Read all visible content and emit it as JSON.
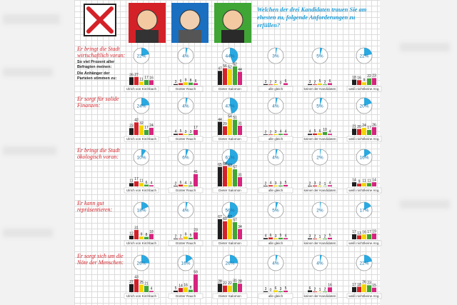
{
  "header": {
    "question": "Welchen der drei Kandidaten trauen Sie am ehesten zu, folgende Anforderungen zu erfüllen?"
  },
  "legend": {
    "respondents": "So viel Prozent aller Befragten meinen:",
    "supporters": "Die Anhänger der Parteien stimmen zu:"
  },
  "columns": [
    "Ulrich von Kirchbach",
    "Günter Rauch",
    "Dieter Salomon",
    "alle gleich",
    "keiner der Kandidaten",
    "weiß nicht/keine Ang."
  ],
  "party_colors": [
    "#1e1e1e",
    "#d42128",
    "#f3d400",
    "#3fa535",
    "#d6247f"
  ],
  "pie_color": "#29a9e1",
  "rows": [
    {
      "question": "Er bringt die Stadt wirtschaftlich voran:",
      "pies": [
        22,
        4,
        44,
        3,
        5,
        22
      ],
      "pie_labels": [
        "22%",
        "4%",
        "44%",
        "3%",
        "5%",
        "22%"
      ],
      "bars": [
        [
          26,
          27,
          11,
          17,
          16
        ],
        [
          3,
          6,
          9,
          8,
          6
        ],
        [
          47,
          56,
          52,
          62,
          44
        ],
        [
          3,
          2,
          3,
          0,
          6
        ],
        [
          3,
          2,
          5,
          2,
          6
        ],
        [
          18,
          16,
          9,
          22,
          23
        ]
      ]
    },
    {
      "question": "Er sorgt für solide Finanzen:",
      "pies": [
        24,
        4,
        47,
        4,
        5,
        20
      ],
      "pie_labels": [
        "24%",
        "4%",
        "47%",
        "4%",
        "5%",
        "20%"
      ],
      "bars": [
        [
          23,
          42,
          32,
          17,
          24
        ],
        [
          4,
          5,
          3,
          3,
          17
        ],
        [
          44,
          29,
          54,
          51,
          31
        ],
        [
          2,
          2,
          3,
          4,
          4
        ],
        [
          4,
          5,
          6,
          10,
          4
        ],
        [
          21,
          20,
          24,
          17,
          26
        ]
      ]
    },
    {
      "question": "Er bringt die Stadt ökologisch voran:",
      "pies": [
        10,
        6,
        61,
        4,
        2,
        16
      ],
      "pie_labels": [
        "10%",
        "6%",
        "61%",
        "4%",
        "2%",
        "16%"
      ],
      "bars": [
        [
          11,
          17,
          11,
          6,
          4
        ],
        [
          2,
          6,
          4,
          3,
          41
        ],
        [
          65,
          68,
          63,
          57,
          31
        ],
        [
          2,
          4,
          3,
          3,
          5
        ],
        [
          2,
          3,
          2,
          1,
          4
        ],
        [
          14,
          9,
          11,
          11,
          14
        ]
      ]
    },
    {
      "question": "Er kann gut repräsentieren:",
      "pies": [
        18,
        4,
        56,
        5,
        2,
        17
      ],
      "pie_labels": [
        "18%",
        "4%",
        "56%",
        "5%",
        "2%",
        "17%"
      ],
      "bars": [
        [
          12,
          31,
          9,
          8,
          18
        ],
        [
          2,
          2,
          9,
          5,
          23
        ],
        [
          67,
          60,
          67,
          57,
          34
        ],
        [
          4,
          6,
          3,
          5,
          4
        ],
        [
          3,
          2,
          1,
          2,
          5
        ],
        [
          17,
          13,
          16,
          17,
          19
        ]
      ]
    },
    {
      "question": "Er sorgt sich um die Nöte der Menschen:",
      "pies": [
        26,
        16,
        26,
        4,
        4,
        22
      ],
      "pie_labels": [
        "26%",
        "16%",
        "26%",
        "4%",
        "4%",
        "22%"
      ],
      "bars": [
        [
          27,
          43,
          25,
          21,
          4
        ],
        [
          5,
          14,
          16,
          8,
          59
        ],
        [
          28,
          22,
          22,
          31,
          28
        ],
        [
          3,
          0,
          6,
          3,
          5
        ],
        [
          6,
          2,
          1,
          2,
          16
        ],
        [
          17,
          18,
          26,
          23,
          15
        ]
      ]
    }
  ]
}
